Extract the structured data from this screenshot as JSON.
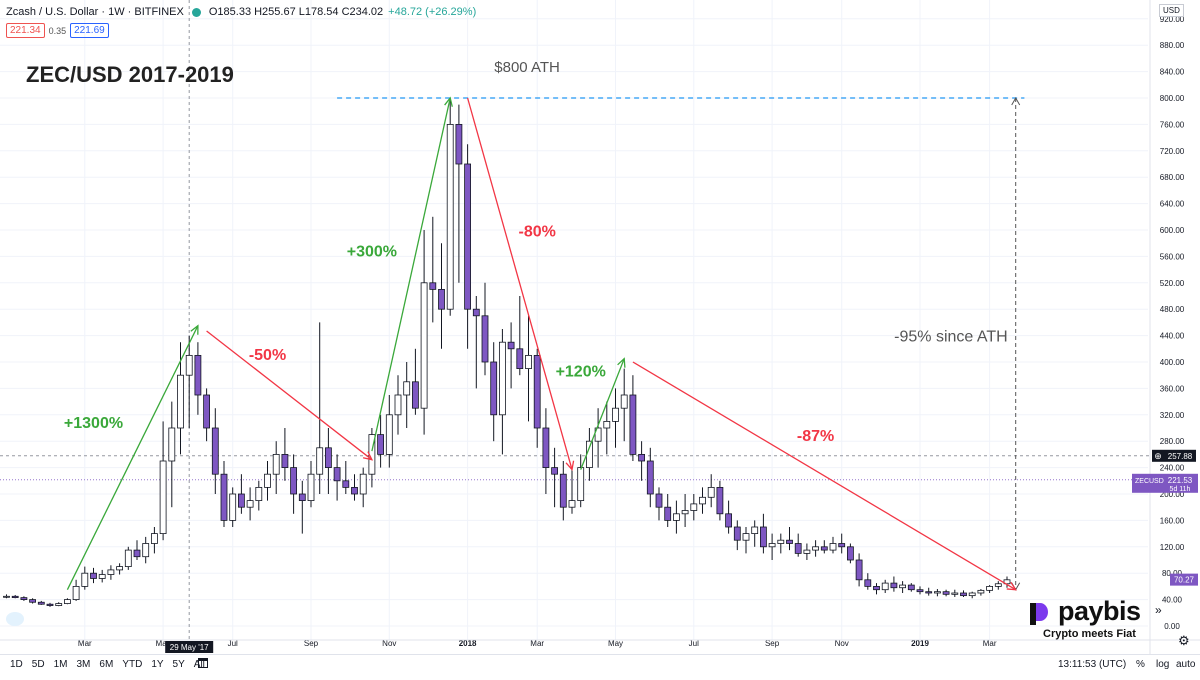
{
  "header": {
    "symbol": "Zcash / U.S. Dollar · 1W · BITFINEX",
    "ohlc": "O185.33 H255.67 L178.54 C234.02",
    "change": "+48.72 (+26.29%)",
    "bid": "221.34",
    "spread": "0.35",
    "ask": "221.69"
  },
  "axis": {
    "currency": "USD"
  },
  "bottom": {
    "ranges": [
      "1D",
      "5D",
      "1M",
      "3M",
      "6M",
      "YTD",
      "1Y",
      "5Y",
      "All"
    ],
    "clock": "13:11:53 (UTC)",
    "percent": "%",
    "log": "log",
    "auto": "auto"
  },
  "logo": {
    "name": "paybis",
    "tagline": "Crypto meets Fiat"
  },
  "colors": {
    "bull": "#ffffff",
    "bear": "#7e57c2",
    "up_annotation": "#3aa83a",
    "down_annotation": "#f23645",
    "ath_line": "#2196f3"
  },
  "chart_data": {
    "type": "candlestick",
    "title": "ZEC/USD 2017-2019",
    "ylim": [
      0,
      920
    ],
    "y_ticks": [
      0,
      40,
      80,
      120,
      160,
      200,
      240,
      280,
      320,
      360,
      400,
      440,
      480,
      520,
      560,
      600,
      640,
      680,
      720,
      760,
      800,
      840,
      880,
      920
    ],
    "x_ticks": [
      {
        "label": "Mar",
        "week": 9
      },
      {
        "label": "May",
        "week": 18
      },
      {
        "label": "Jul",
        "week": 26
      },
      {
        "label": "Sep",
        "week": 35
      },
      {
        "label": "Nov",
        "week": 44
      },
      {
        "label": "2018",
        "week": 53
      },
      {
        "label": "Mar",
        "week": 61
      },
      {
        "label": "May",
        "week": 70
      },
      {
        "label": "Jul",
        "week": 79
      },
      {
        "label": "Sep",
        "week": 88
      },
      {
        "label": "Nov",
        "week": 96
      },
      {
        "label": "2019",
        "week": 105
      },
      {
        "label": "Mar",
        "week": 113
      }
    ],
    "crosshair": {
      "date_label": "29 May '17",
      "week": 21,
      "price_label": "257.88",
      "price": 257.88
    },
    "last_price": {
      "symbol": "ZECUSD",
      "price": 221.53,
      "label": "221.53",
      "countdown": "5d 11h"
    },
    "scale_label": {
      "price": 70.27,
      "label": "70.27"
    },
    "ath_line": {
      "price": 800,
      "from_week": 38,
      "to_week": 117,
      "label": "$800 ATH"
    },
    "ath_drop": {
      "week": 116,
      "from_price": 800,
      "to_price": 55,
      "label": "-95% since ATH"
    },
    "annotations": [
      {
        "text": "+1300%",
        "kind": "up",
        "from": {
          "week": 7,
          "price": 55
        },
        "to": {
          "week": 22,
          "price": 455
        },
        "label_at": {
          "week": 10,
          "price": 300
        }
      },
      {
        "text": "-50%",
        "kind": "down",
        "from": {
          "week": 23,
          "price": 447
        },
        "to": {
          "week": 42,
          "price": 252
        },
        "label_at": {
          "week": 30,
          "price": 403
        }
      },
      {
        "text": "+300%",
        "kind": "up",
        "from": {
          "week": 42,
          "price": 265
        },
        "to": {
          "week": 51,
          "price": 800
        },
        "label_at": {
          "week": 42,
          "price": 560
        }
      },
      {
        "text": "-80%",
        "kind": "down",
        "from": {
          "week": 53,
          "price": 800
        },
        "to": {
          "week": 65,
          "price": 237
        },
        "label_at": {
          "week": 61,
          "price": 590
        }
      },
      {
        "text": "+120%",
        "kind": "up",
        "from": {
          "week": 66,
          "price": 237
        },
        "to": {
          "week": 71,
          "price": 405
        },
        "label_at": {
          "week": 66,
          "price": 378
        }
      },
      {
        "text": "-87%",
        "kind": "down",
        "from": {
          "week": 72,
          "price": 400
        },
        "to": {
          "week": 116,
          "price": 55
        },
        "label_at": {
          "week": 93,
          "price": 280
        }
      }
    ],
    "candles": [
      [
        0,
        45,
        48,
        42,
        45
      ],
      [
        1,
        45,
        47,
        42,
        43
      ],
      [
        2,
        43,
        45,
        38,
        40
      ],
      [
        3,
        40,
        42,
        34,
        36
      ],
      [
        4,
        36,
        38,
        32,
        33
      ],
      [
        5,
        33,
        35,
        29,
        31
      ],
      [
        6,
        31,
        36,
        30,
        34
      ],
      [
        7,
        34,
        42,
        33,
        40
      ],
      [
        8,
        40,
        70,
        38,
        60
      ],
      [
        9,
        60,
        90,
        55,
        80
      ],
      [
        10,
        80,
        88,
        65,
        72
      ],
      [
        11,
        72,
        85,
        66,
        78
      ],
      [
        12,
        78,
        92,
        70,
        85
      ],
      [
        13,
        85,
        95,
        78,
        90
      ],
      [
        14,
        90,
        120,
        85,
        115
      ],
      [
        15,
        115,
        130,
        100,
        105
      ],
      [
        16,
        105,
        135,
        95,
        125
      ],
      [
        17,
        125,
        150,
        110,
        140
      ],
      [
        18,
        140,
        310,
        130,
        250
      ],
      [
        19,
        250,
        340,
        180,
        300
      ],
      [
        20,
        300,
        430,
        260,
        380
      ],
      [
        21,
        380,
        440,
        300,
        410
      ],
      [
        22,
        410,
        430,
        320,
        350
      ],
      [
        23,
        350,
        360,
        280,
        300
      ],
      [
        24,
        300,
        330,
        200,
        230
      ],
      [
        25,
        230,
        250,
        150,
        160
      ],
      [
        26,
        160,
        210,
        150,
        200
      ],
      [
        27,
        200,
        230,
        170,
        180
      ],
      [
        28,
        180,
        210,
        160,
        190
      ],
      [
        29,
        190,
        220,
        175,
        210
      ],
      [
        30,
        210,
        250,
        190,
        230
      ],
      [
        31,
        230,
        280,
        200,
        260
      ],
      [
        32,
        260,
        300,
        220,
        240
      ],
      [
        33,
        240,
        260,
        170,
        200
      ],
      [
        34,
        200,
        220,
        140,
        190
      ],
      [
        35,
        190,
        250,
        180,
        230
      ],
      [
        36,
        230,
        460,
        200,
        270
      ],
      [
        37,
        270,
        300,
        200,
        240
      ],
      [
        38,
        240,
        260,
        190,
        220
      ],
      [
        39,
        220,
        250,
        200,
        210
      ],
      [
        40,
        210,
        230,
        190,
        200
      ],
      [
        41,
        200,
        240,
        180,
        230
      ],
      [
        42,
        230,
        300,
        210,
        290
      ],
      [
        43,
        290,
        320,
        240,
        260
      ],
      [
        44,
        260,
        350,
        240,
        320
      ],
      [
        45,
        320,
        380,
        290,
        350
      ],
      [
        46,
        350,
        400,
        300,
        370
      ],
      [
        47,
        370,
        420,
        320,
        330
      ],
      [
        48,
        330,
        600,
        290,
        520
      ],
      [
        49,
        520,
        620,
        460,
        510
      ],
      [
        50,
        510,
        580,
        420,
        480
      ],
      [
        51,
        480,
        800,
        470,
        760
      ],
      [
        52,
        760,
        790,
        520,
        700
      ],
      [
        53,
        700,
        730,
        420,
        480
      ],
      [
        54,
        480,
        500,
        360,
        470
      ],
      [
        55,
        470,
        520,
        380,
        400
      ],
      [
        56,
        400,
        430,
        280,
        320
      ],
      [
        57,
        320,
        450,
        260,
        430
      ],
      [
        58,
        430,
        460,
        360,
        420
      ],
      [
        59,
        420,
        500,
        380,
        390
      ],
      [
        60,
        390,
        470,
        310,
        410
      ],
      [
        61,
        410,
        420,
        270,
        300
      ],
      [
        62,
        300,
        330,
        200,
        240
      ],
      [
        63,
        240,
        270,
        180,
        230
      ],
      [
        64,
        230,
        250,
        160,
        180
      ],
      [
        65,
        180,
        240,
        170,
        190
      ],
      [
        66,
        190,
        260,
        180,
        240
      ],
      [
        67,
        240,
        300,
        220,
        280
      ],
      [
        68,
        280,
        330,
        240,
        300
      ],
      [
        69,
        300,
        340,
        260,
        310
      ],
      [
        70,
        310,
        360,
        270,
        330
      ],
      [
        71,
        330,
        390,
        280,
        350
      ],
      [
        72,
        350,
        380,
        250,
        260
      ],
      [
        73,
        260,
        280,
        220,
        250
      ],
      [
        74,
        250,
        270,
        180,
        200
      ],
      [
        75,
        200,
        210,
        160,
        180
      ],
      [
        76,
        180,
        200,
        150,
        160
      ],
      [
        77,
        160,
        190,
        140,
        170
      ],
      [
        78,
        170,
        200,
        150,
        175
      ],
      [
        79,
        175,
        200,
        160,
        185
      ],
      [
        80,
        185,
        210,
        170,
        195
      ],
      [
        81,
        195,
        230,
        180,
        210
      ],
      [
        82,
        210,
        220,
        160,
        170
      ],
      [
        83,
        170,
        190,
        140,
        150
      ],
      [
        84,
        150,
        160,
        115,
        130
      ],
      [
        85,
        130,
        150,
        110,
        140
      ],
      [
        86,
        140,
        160,
        120,
        150
      ],
      [
        87,
        150,
        170,
        110,
        120
      ],
      [
        88,
        120,
        140,
        100,
        125
      ],
      [
        89,
        125,
        140,
        110,
        130
      ],
      [
        90,
        130,
        150,
        115,
        125
      ],
      [
        91,
        125,
        140,
        105,
        110
      ],
      [
        92,
        110,
        125,
        100,
        115
      ],
      [
        93,
        115,
        130,
        105,
        120
      ],
      [
        94,
        120,
        130,
        110,
        115
      ],
      [
        95,
        115,
        135,
        110,
        125
      ],
      [
        96,
        125,
        140,
        110,
        120
      ],
      [
        97,
        120,
        125,
        95,
        100
      ],
      [
        98,
        100,
        110,
        60,
        70
      ],
      [
        99,
        70,
        80,
        55,
        60
      ],
      [
        100,
        60,
        65,
        48,
        55
      ],
      [
        101,
        55,
        70,
        50,
        65
      ],
      [
        102,
        65,
        75,
        52,
        58
      ],
      [
        103,
        58,
        68,
        50,
        62
      ],
      [
        104,
        62,
        65,
        52,
        55
      ],
      [
        105,
        55,
        60,
        48,
        52
      ],
      [
        106,
        52,
        58,
        46,
        50
      ],
      [
        107,
        50,
        56,
        45,
        52
      ],
      [
        108,
        52,
        55,
        45,
        48
      ],
      [
        109,
        48,
        55,
        44,
        50
      ],
      [
        110,
        50,
        54,
        44,
        46
      ],
      [
        111,
        46,
        52,
        42,
        50
      ],
      [
        112,
        50,
        56,
        46,
        54
      ],
      [
        113,
        54,
        62,
        50,
        60
      ],
      [
        114,
        60,
        68,
        55,
        64
      ],
      [
        115,
        64,
        75,
        58,
        70
      ]
    ]
  }
}
